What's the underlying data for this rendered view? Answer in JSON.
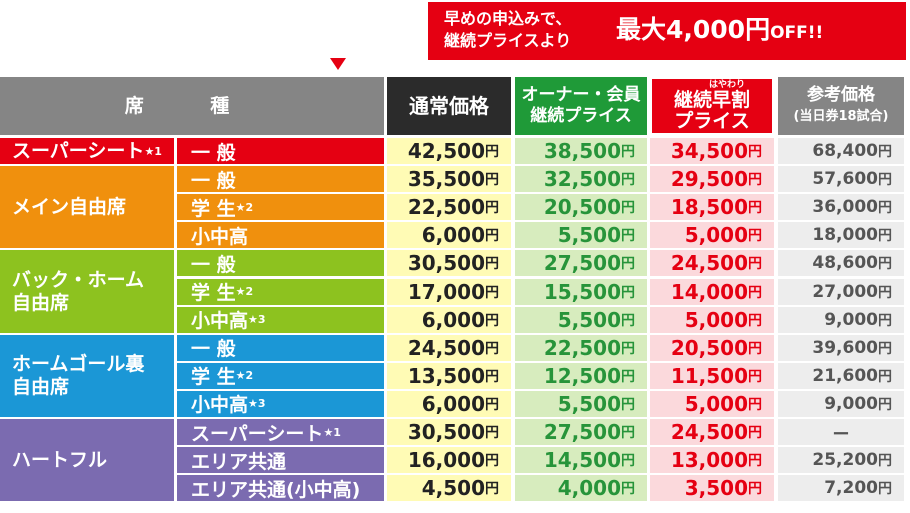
{
  "banner": {
    "line1": "早めの申込みで、",
    "line2": "継続プライスより",
    "big": "最大4,000円",
    "big_en": "OFF!!",
    "color": "#e50012"
  },
  "header": {
    "seat": "席 種",
    "regular": "通常価格",
    "member_line1": "オーナー・会員",
    "member_line2": "継続プライス",
    "early_ruby": "はやわり",
    "early_line1": "継続早割",
    "early_line2": "プライス",
    "reference_line1": "参考価格",
    "reference_line2": "(当日券18試合)"
  },
  "groups": [
    {
      "label": "スーパーシート",
      "note": "★1",
      "color": "#e50012"
    },
    {
      "label": "メイン自由席",
      "note": "",
      "color": "#f0900d"
    },
    {
      "label": "バック・ホーム\n自由席",
      "note": "",
      "color": "#8dc21f"
    },
    {
      "label": "ホームゴール裏\n自由席",
      "note": "",
      "color": "#1b97d6"
    },
    {
      "label": "ハートフル",
      "note": "",
      "color": "#7b6bb0"
    }
  ],
  "rows": [
    {
      "type": "一 般",
      "note": "",
      "regular": "42,500",
      "member": "38,500",
      "early": "34,500",
      "reference": "68,400"
    },
    {
      "type": "一 般",
      "note": "",
      "regular": "35,500",
      "member": "32,500",
      "early": "29,500",
      "reference": "57,600"
    },
    {
      "type": "学 生",
      "note": "★2",
      "regular": "22,500",
      "member": "20,500",
      "early": "18,500",
      "reference": "36,000"
    },
    {
      "type": "小中高",
      "note": "",
      "regular": "6,000",
      "member": "5,500",
      "early": "5,000",
      "reference": "18,000"
    },
    {
      "type": "一 般",
      "note": "",
      "regular": "30,500",
      "member": "27,500",
      "early": "24,500",
      "reference": "48,600"
    },
    {
      "type": "学 生",
      "note": "★2",
      "regular": "17,000",
      "member": "15,500",
      "early": "14,000",
      "reference": "27,000"
    },
    {
      "type": "小中高",
      "note": "★3",
      "regular": "6,000",
      "member": "5,500",
      "early": "5,000",
      "reference": "9,000"
    },
    {
      "type": "一 般",
      "note": "",
      "regular": "24,500",
      "member": "22,500",
      "early": "20,500",
      "reference": "39,600"
    },
    {
      "type": "学 生",
      "note": "★2",
      "regular": "13,500",
      "member": "12,500",
      "early": "11,500",
      "reference": "21,600"
    },
    {
      "type": "小中高",
      "note": "★3",
      "regular": "6,000",
      "member": "5,500",
      "early": "5,000",
      "reference": "9,000"
    },
    {
      "type": "スーパーシート",
      "note": "★1",
      "regular": "30,500",
      "member": "27,500",
      "early": "24,500",
      "reference": "ー"
    },
    {
      "type": "エリア共通",
      "note": "",
      "regular": "16,000",
      "member": "14,500",
      "early": "13,000",
      "reference": "25,200"
    },
    {
      "type": "エリア共通(小中高)",
      "note": "",
      "regular": "4,500",
      "member": "4,000",
      "early": "3,500",
      "reference": "7,200"
    }
  ],
  "yen": "円"
}
